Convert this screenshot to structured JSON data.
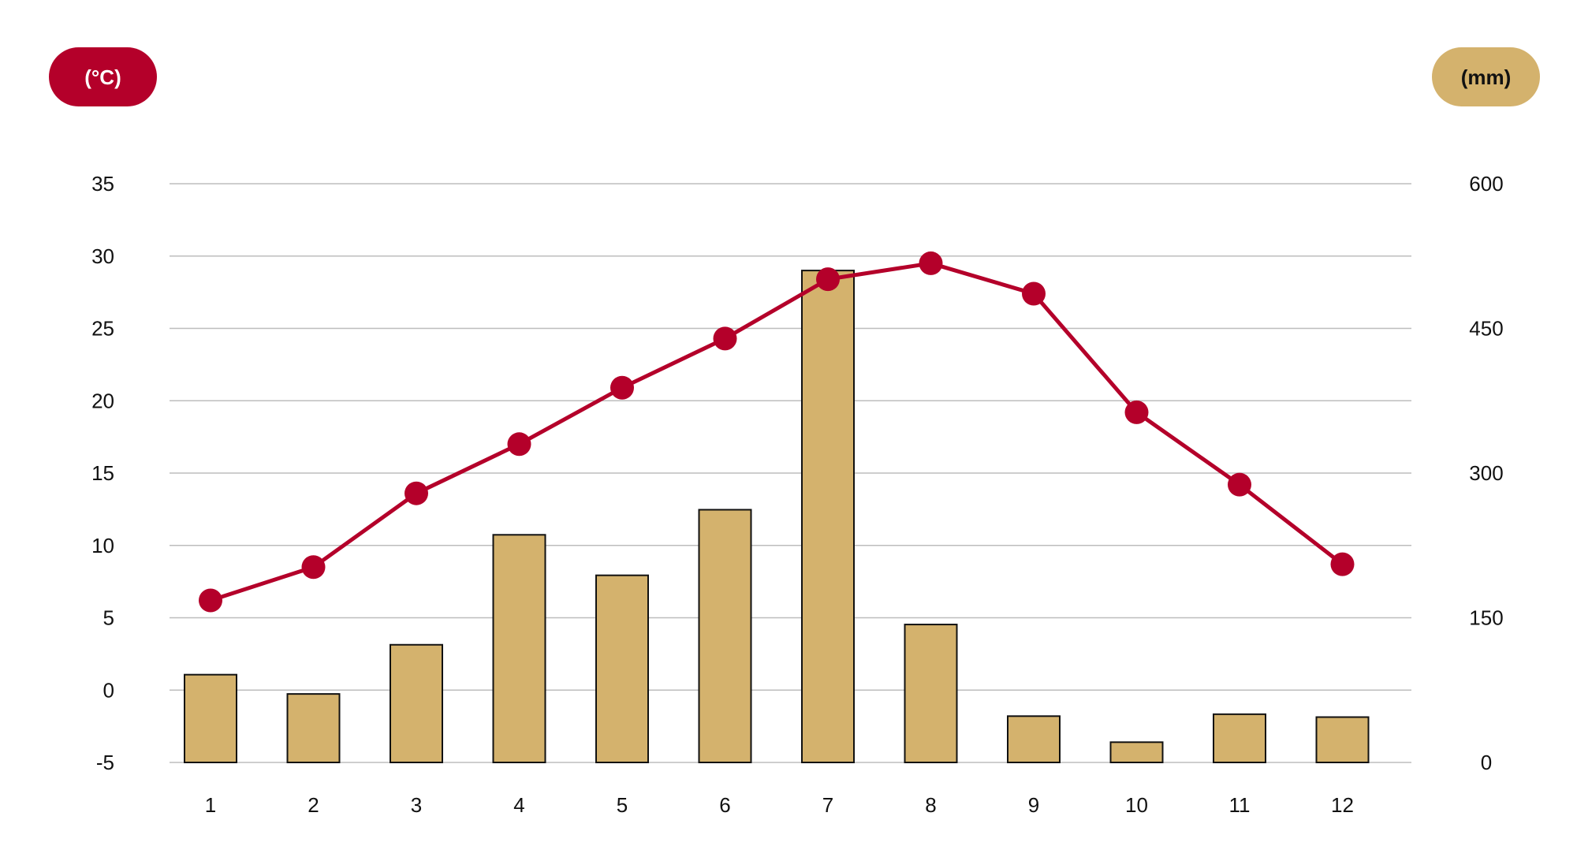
{
  "chart_data": {
    "type": "bar+line",
    "categories": [
      "1",
      "2",
      "3",
      "4",
      "5",
      "6",
      "7",
      "8",
      "9",
      "10",
      "11",
      "12"
    ],
    "series": [
      {
        "type": "bar",
        "axis": "right",
        "values": [
          91,
          71,
          122,
          236,
          194,
          262,
          510,
          143,
          48,
          21,
          50,
          47
        ]
      },
      {
        "type": "line",
        "axis": "left",
        "values": [
          6.2,
          8.5,
          13.6,
          17.0,
          20.9,
          24.3,
          28.4,
          29.5,
          27.4,
          19.2,
          14.2,
          8.7
        ]
      }
    ],
    "left_axis": {
      "unit_label": "(°C)",
      "ylim": [
        -5,
        35
      ],
      "ticks": [
        "35",
        "30",
        "25",
        "20",
        "15",
        "10",
        "5",
        "0",
        "-5"
      ]
    },
    "right_axis": {
      "unit_label": "(mm)",
      "ylim": [
        0,
        600
      ],
      "ticks": [
        "600",
        "450",
        "300",
        "150",
        "0"
      ]
    },
    "grid": true,
    "colors": {
      "bar_fill": "#d4b26d",
      "bar_stroke": "#111111",
      "line": "#b4002a",
      "grid": "#bdbdbd",
      "temp_pill": "#b4002a",
      "temp_pill_text": "#ffffff",
      "rain_pill": "#d4b26d",
      "rain_pill_text": "#111111"
    }
  }
}
